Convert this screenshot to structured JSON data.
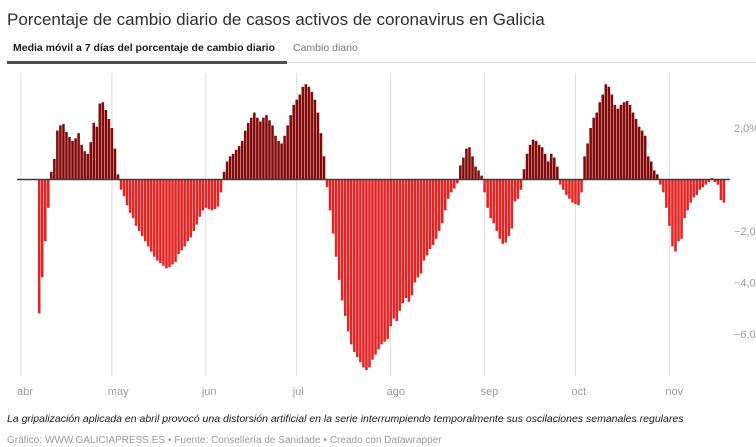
{
  "header": {
    "title": "Porcentaje de cambio diario de casos activos de coronavirus en Galicia",
    "tabs": [
      {
        "label": "Media móvil a 7 días del porcentaje de cambio diario",
        "active": true
      },
      {
        "label": "Cambio diario",
        "active": false
      }
    ]
  },
  "footer": {
    "note": "La gripalización aplicada en abril provocó una distorsión artificial en la serie interrumpiendo temporalmente sus oscilaciones semanales regulares",
    "byline": {
      "grafico_label": "Gráfico:",
      "grafico_link": "WWW.GALICIAPRESS.ES",
      "fuente_segment": "• Fuente: Consellería de Sanidade •",
      "datawrapper_link": "Creado con Datawrapper"
    }
  },
  "chart_data": {
    "type": "bar",
    "title": "Porcentaje de cambio diario de casos activos de coronavirus en Galicia",
    "series_name": "Media móvil a 7 días del porcentaje de cambio diario",
    "unit": "%",
    "y_axis": {
      "ticks": [
        {
          "value": 2,
          "label": "2,0%"
        },
        {
          "value": -2,
          "label": "−2,0"
        },
        {
          "value": -4,
          "label": "−4,0"
        },
        {
          "value": -6,
          "label": "−6,0"
        }
      ],
      "min": -7.6,
      "max": 4.1,
      "grid": false
    },
    "x_axis": {
      "months": [
        {
          "label": "abr",
          "day": 0
        },
        {
          "label": "may",
          "day": 30
        },
        {
          "label": "jun",
          "day": 61
        },
        {
          "label": "jul",
          "day": 91
        },
        {
          "label": "ago",
          "day": 122
        },
        {
          "label": "sep",
          "day": 153
        },
        {
          "label": "oct",
          "day": 183
        },
        {
          "label": "nov",
          "day": 214
        }
      ],
      "total_days": 234,
      "grid": true
    },
    "series": {
      "first_day_offset": 6,
      "values": [
        -5.2,
        -3.8,
        -2.4,
        -1.1,
        0.3,
        0.8,
        1.9,
        2.1,
        2.15,
        1.85,
        1.65,
        1.5,
        1.6,
        1.8,
        1.35,
        1.1,
        1.0,
        1.45,
        2.2,
        2.05,
        2.95,
        3.0,
        2.7,
        2.35,
        2.0,
        1.2,
        0.2,
        -0.4,
        -0.65,
        -1.0,
        -1.3,
        -1.5,
        -1.8,
        -2.0,
        -2.2,
        -2.4,
        -2.6,
        -2.8,
        -3.0,
        -3.15,
        -3.25,
        -3.35,
        -3.45,
        -3.4,
        -3.3,
        -3.2,
        -2.9,
        -2.75,
        -2.6,
        -2.4,
        -2.25,
        -2.0,
        -1.75,
        -1.45,
        -1.2,
        -1.1,
        -1.15,
        -1.2,
        -1.15,
        -1.05,
        -0.5,
        0.3,
        0.7,
        0.9,
        1.0,
        1.15,
        1.3,
        1.5,
        1.9,
        2.2,
        2.4,
        2.6,
        2.4,
        2.25,
        2.4,
        2.5,
        2.3,
        2.1,
        1.7,
        1.5,
        1.4,
        1.7,
        2.1,
        2.5,
        2.9,
        3.1,
        3.3,
        3.6,
        3.7,
        3.6,
        3.4,
        3.1,
        2.6,
        1.8,
        0.9,
        -0.3,
        -1.2,
        -2.1,
        -3.0,
        -3.9,
        -4.7,
        -5.3,
        -5.9,
        -6.4,
        -6.7,
        -6.9,
        -7.1,
        -7.3,
        -7.4,
        -7.3,
        -7.0,
        -6.8,
        -6.6,
        -6.4,
        -6.3,
        -6.2,
        -5.7,
        -5.4,
        -5.5,
        -5.1,
        -4.8,
        -4.6,
        -4.75,
        -4.5,
        -4.0,
        -3.8,
        -3.65,
        -3.15,
        -2.95,
        -2.7,
        -2.55,
        -2.3,
        -2.0,
        -1.7,
        -1.2,
        -0.75,
        -0.5,
        -0.35,
        -0.15,
        0.55,
        0.85,
        1.2,
        1.25,
        0.9,
        0.5,
        0.35,
        0.15,
        -0.5,
        -1.1,
        -1.5,
        -1.7,
        -2.0,
        -2.3,
        -2.5,
        -2.45,
        -2.2,
        -1.9,
        -0.85,
        -0.75,
        -0.4,
        0.4,
        1.0,
        1.35,
        1.55,
        1.5,
        1.35,
        1.25,
        1.0,
        0.7,
        1.0,
        0.85,
        0.5,
        -0.2,
        -0.4,
        -0.6,
        -0.75,
        -0.9,
        -0.95,
        -1.0,
        -0.5,
        0.9,
        1.4,
        2.0,
        2.4,
        2.6,
        3.0,
        3.3,
        3.7,
        3.6,
        3.3,
        2.9,
        2.75,
        2.9,
        3.0,
        3.05,
        2.9,
        2.6,
        2.35,
        2.05,
        1.9,
        1.7,
        0.9,
        0.7,
        0.35,
        0.2,
        -0.2,
        -0.5,
        -1.1,
        -1.8,
        -2.6,
        -2.8,
        -2.4,
        -2.3,
        -1.5,
        -1.2,
        -0.9,
        -0.7,
        -0.6,
        -0.4,
        -0.3,
        -0.2,
        -0.1,
        0.05,
        -0.1,
        -0.2,
        -0.8,
        -0.9
      ]
    },
    "colors": {
      "positive": "#820808",
      "negative": "#e32222",
      "baseline": "#3d3d3d",
      "grid": "#dddddd",
      "axis_text": "#9b9b9b"
    }
  }
}
